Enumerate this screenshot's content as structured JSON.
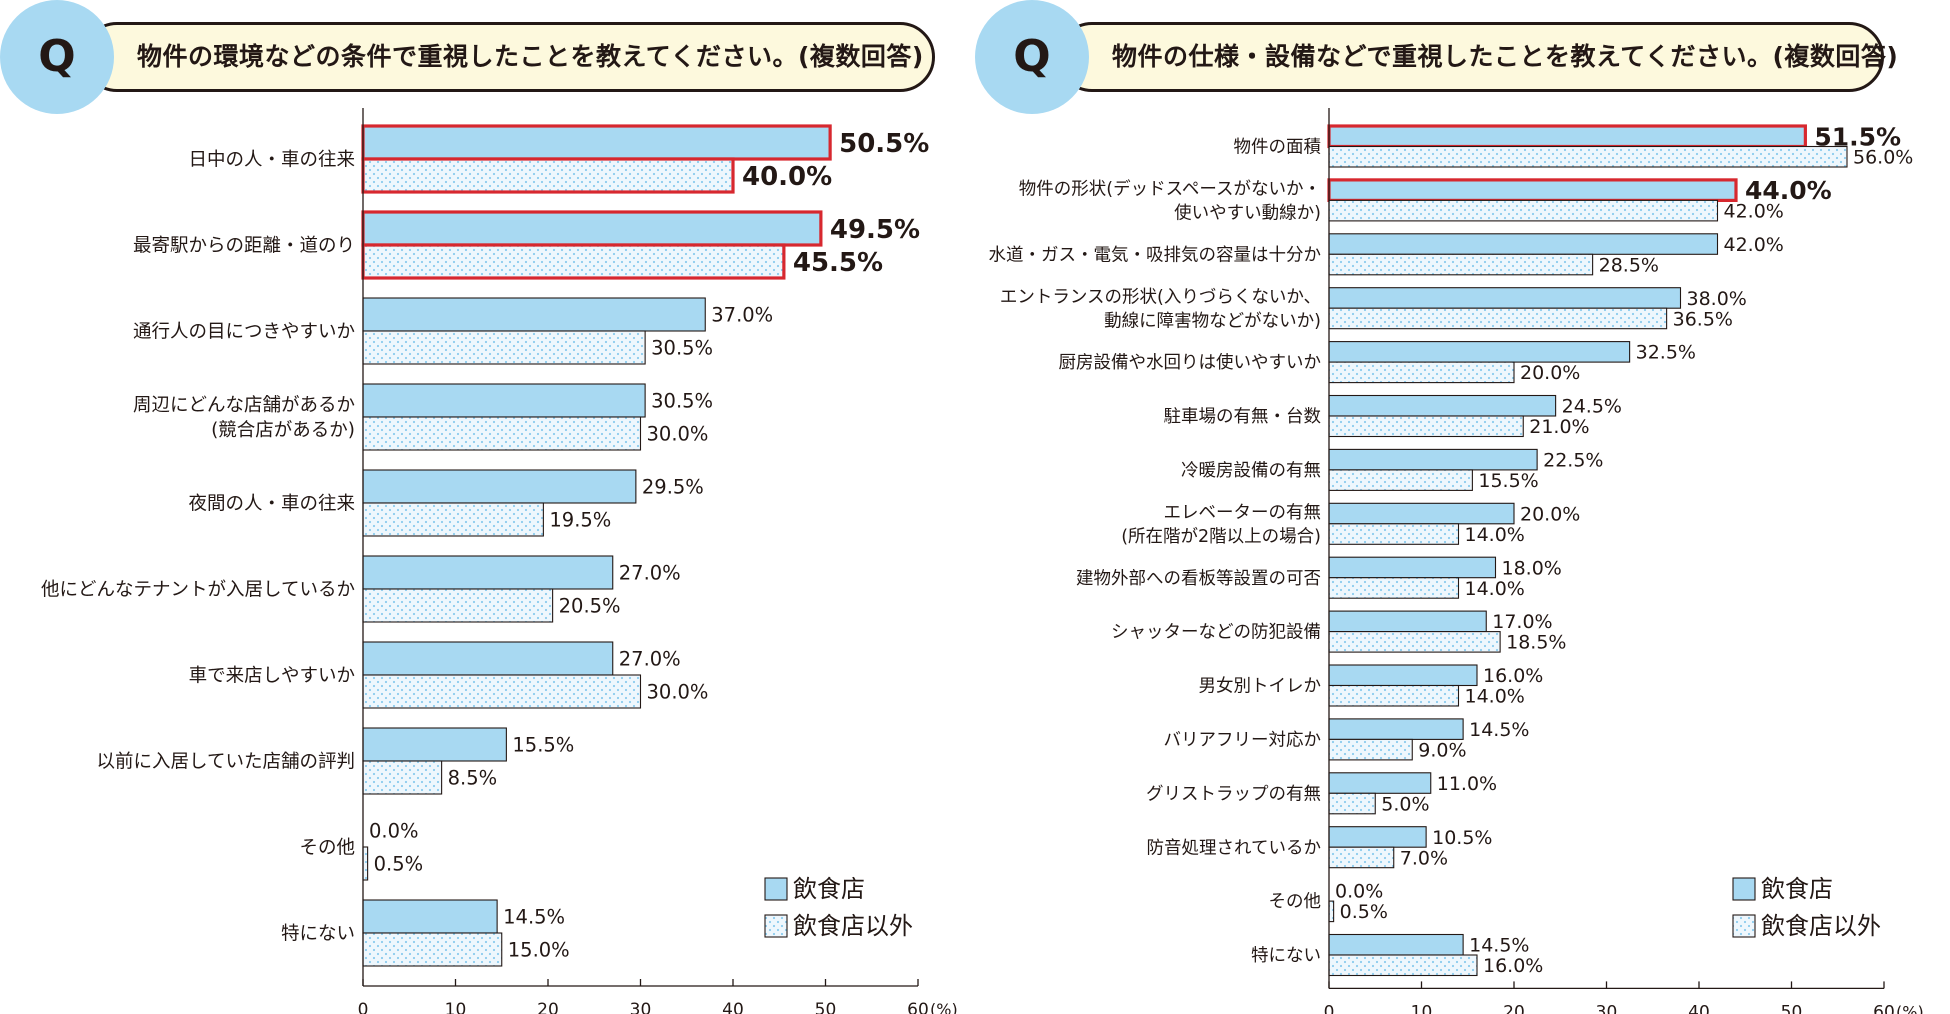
{
  "colors": {
    "bar_fill": "#a8d9f2",
    "dot_fill": "#eef7fd",
    "dot_color": "#8ccbee",
    "highlight": "#d7282f",
    "question_bg": "#fdf9dd",
    "question_circle": "#a8d9f2",
    "axis": "#231815"
  },
  "chart_data": [
    {
      "type": "bar",
      "orientation": "horizontal",
      "question_mark": "Q",
      "title": "物件の環境などの条件で重視したことを教えてください。(複数回答)",
      "categories": [
        [
          "日中の人・車の往来"
        ],
        [
          "最寄駅からの距離・道のり"
        ],
        [
          "通行人の目につきやすいか"
        ],
        [
          "周辺にどんな店舗があるか",
          "(競合店があるか)"
        ],
        [
          "夜間の人・車の往来"
        ],
        [
          "他にどんなテナントが入居しているか"
        ],
        [
          "車で来店しやすいか"
        ],
        [
          "以前に入居していた店舗の評判"
        ],
        [
          "その他"
        ],
        [
          "特にない"
        ]
      ],
      "series": [
        {
          "name": "飲食店",
          "values": [
            50.5,
            49.5,
            37.0,
            30.5,
            29.5,
            27.0,
            27.0,
            15.5,
            0.0,
            14.5
          ],
          "labels": [
            "50.5%",
            "49.5%",
            "37.0%",
            "30.5%",
            "29.5%",
            "27.0%",
            "27.0%",
            "15.5%",
            "0.0%",
            "14.5%"
          ]
        },
        {
          "name": "飲食店以外",
          "values": [
            40.0,
            45.5,
            30.5,
            30.0,
            19.5,
            20.5,
            30.0,
            8.5,
            0.5,
            15.0
          ],
          "labels": [
            "40.0%",
            "45.5%",
            "30.5%",
            "30.0%",
            "19.5%",
            "20.5%",
            "30.0%",
            "8.5%",
            "0.5%",
            "15.0%"
          ]
        }
      ],
      "highlighted": [
        [
          0,
          0
        ],
        [
          0,
          1
        ],
        [
          1,
          0
        ],
        [
          1,
          1
        ]
      ],
      "xlim": [
        0,
        60
      ],
      "xticks": [
        "0",
        "10",
        "20",
        "30",
        "40",
        "50",
        "60"
      ],
      "xunit": "(%)",
      "legend": {
        "position": "bottom-right",
        "entries": [
          "飲食店",
          "飲食店以外"
        ]
      }
    },
    {
      "type": "bar",
      "orientation": "horizontal",
      "question_mark": "Q",
      "title": "物件の仕様・設備などで重視したことを教えてください。(複数回答)",
      "categories": [
        [
          "物件の面積"
        ],
        [
          "物件の形状(デッドスペースがないか・",
          "使いやすい動線か)"
        ],
        [
          "水道・ガス・電気・吸排気の容量は十分か"
        ],
        [
          "エントランスの形状(入りづらくないか、",
          "動線に障害物などがないか)"
        ],
        [
          "厨房設備や水回りは使いやすいか"
        ],
        [
          "駐車場の有無・台数"
        ],
        [
          "冷暖房設備の有無"
        ],
        [
          "エレベーターの有無",
          "(所在階が2階以上の場合)"
        ],
        [
          "建物外部への看板等設置の可否"
        ],
        [
          "シャッターなどの防犯設備"
        ],
        [
          "男女別トイレか"
        ],
        [
          "バリアフリー対応か"
        ],
        [
          "グリストラップの有無"
        ],
        [
          "防音処理されているか"
        ],
        [
          "その他"
        ],
        [
          "特にない"
        ]
      ],
      "series": [
        {
          "name": "飲食店",
          "values": [
            51.5,
            44.0,
            42.0,
            38.0,
            32.5,
            24.5,
            22.5,
            20.0,
            18.0,
            17.0,
            16.0,
            14.5,
            11.0,
            10.5,
            0.0,
            14.5
          ],
          "labels": [
            "51.5%",
            "44.0%",
            "42.0%",
            "38.0%",
            "32.5%",
            "24.5%",
            "22.5%",
            "20.0%",
            "18.0%",
            "17.0%",
            "16.0%",
            "14.5%",
            "11.0%",
            "10.5%",
            "0.0%",
            "14.5%"
          ]
        },
        {
          "name": "飲食店以外",
          "values": [
            56.0,
            42.0,
            28.5,
            36.5,
            20.0,
            21.0,
            15.5,
            14.0,
            14.0,
            18.5,
            14.0,
            9.0,
            5.0,
            7.0,
            0.5,
            16.0
          ],
          "labels": [
            "56.0%",
            "42.0%",
            "28.5%",
            "36.5%",
            "20.0%",
            "21.0%",
            "15.5%",
            "14.0%",
            "14.0%",
            "18.5%",
            "14.0%",
            "9.0%",
            "5.0%",
            "7.0%",
            "0.5%",
            "16.0%"
          ]
        }
      ],
      "highlighted": [
        [
          0,
          0
        ],
        [
          1,
          0
        ]
      ],
      "xlim": [
        0,
        60
      ],
      "xticks": [
        "0",
        "10",
        "20",
        "30",
        "40",
        "50",
        "60"
      ],
      "xunit": "(%)",
      "legend": {
        "position": "bottom-right",
        "entries": [
          "飲食店",
          "飲食店以外"
        ]
      }
    }
  ]
}
